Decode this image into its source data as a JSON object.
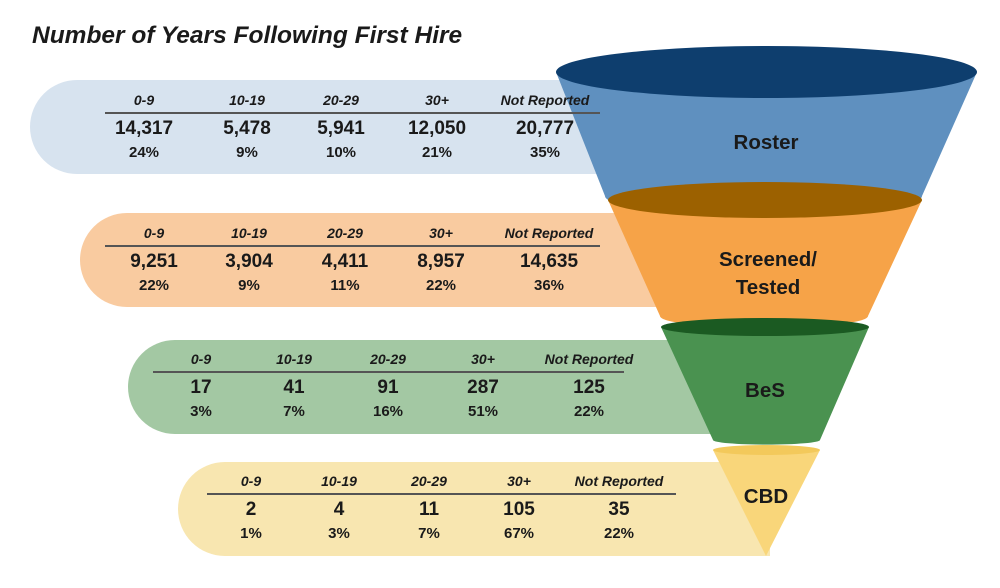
{
  "title": "Number of Years Following First Hire",
  "columns": [
    "0-9",
    "10-19",
    "20-29",
    "30+",
    "Not Reported"
  ],
  "stages": [
    {
      "label": [
        "Roster"
      ],
      "counts": [
        "14,317",
        "5,478",
        "5,941",
        "12,050",
        "20,777"
      ],
      "percents": [
        "24%",
        "9%",
        "10%",
        "21%",
        "35%"
      ],
      "colors": {
        "band": "#d7e3ef",
        "body": "#5f90bf",
        "top": "#0e3e6e"
      }
    },
    {
      "label": [
        "Screened/",
        "Tested"
      ],
      "counts": [
        "9,251",
        "3,904",
        "4,411",
        "8,957",
        "14,635"
      ],
      "percents": [
        "22%",
        "9%",
        "11%",
        "22%",
        "36%"
      ],
      "colors": {
        "band": "#f9cba0",
        "body": "#f6a348",
        "top": "#9c6100"
      }
    },
    {
      "label": [
        "BeS"
      ],
      "counts": [
        "17",
        "41",
        "91",
        "287",
        "125"
      ],
      "percents": [
        "3%",
        "7%",
        "16%",
        "51%",
        "22%"
      ],
      "colors": {
        "band": "#a3c8a3",
        "body": "#4a9250",
        "top": "#1b5a22"
      }
    },
    {
      "label": [
        "CBD"
      ],
      "counts": [
        "2",
        "4",
        "11",
        "105",
        "35"
      ],
      "percents": [
        "1%",
        "3%",
        "7%",
        "67%",
        "22%"
      ],
      "colors": {
        "band": "#f8e6b0",
        "body": "#f9d67a",
        "top": "#f3c95b"
      }
    }
  ]
}
